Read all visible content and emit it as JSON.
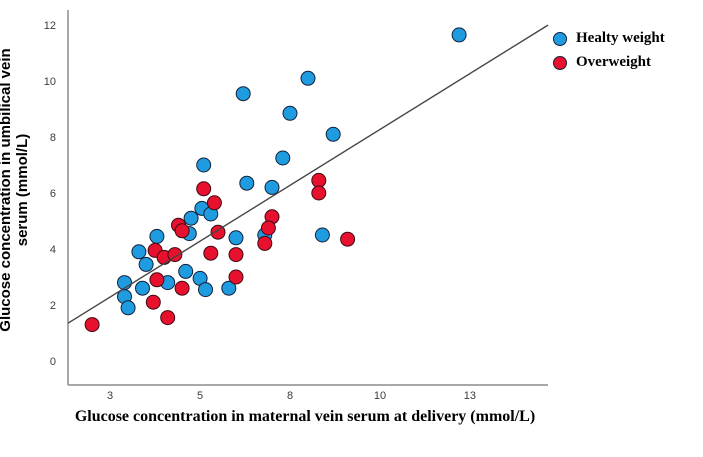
{
  "chart_data": {
    "type": "scatter",
    "title": "",
    "xlabel": "Glucose concentration in maternal vein serum at delivery (mmol/L)",
    "ylabel": "Glucose concentration in umbilical vein serum (mmol/L)",
    "xlim": [
      1.33,
      14.67
    ],
    "ylim": [
      -0.86,
      12.54
    ],
    "grid": false,
    "legend_position": "top-right",
    "x_ticks": [
      {
        "v": 2.5,
        "label": "3"
      },
      {
        "v": 5.0,
        "label": "5"
      },
      {
        "v": 7.5,
        "label": "8"
      },
      {
        "v": 10.0,
        "label": "10"
      },
      {
        "v": 12.5,
        "label": "13"
      }
    ],
    "y_ticks": [
      {
        "v": 0,
        "label": "0"
      },
      {
        "v": 2,
        "label": "2"
      },
      {
        "v": 4,
        "label": "4"
      },
      {
        "v": 6,
        "label": "6"
      },
      {
        "v": 8,
        "label": "8"
      },
      {
        "v": 10,
        "label": "10"
      },
      {
        "v": 12,
        "label": "12"
      }
    ],
    "series": [
      {
        "name": "Healty weight",
        "color": "#1f9be0",
        "outline": "#14203c",
        "marker": "circle",
        "points": [
          [
            12.2,
            11.65
          ],
          [
            8.0,
            10.1
          ],
          [
            6.2,
            9.55
          ],
          [
            7.5,
            8.85
          ],
          [
            8.7,
            8.1
          ],
          [
            7.3,
            7.25
          ],
          [
            5.1,
            7.0
          ],
          [
            6.3,
            6.35
          ],
          [
            7.0,
            6.2
          ],
          [
            5.05,
            5.45
          ],
          [
            5.3,
            5.25
          ],
          [
            4.75,
            5.1
          ],
          [
            3.8,
            4.45
          ],
          [
            4.7,
            4.55
          ],
          [
            6.0,
            4.4
          ],
          [
            6.8,
            4.5
          ],
          [
            8.4,
            4.5
          ],
          [
            3.3,
            3.9
          ],
          [
            3.5,
            3.45
          ],
          [
            4.6,
            3.2
          ],
          [
            5.0,
            2.95
          ],
          [
            5.15,
            2.55
          ],
          [
            5.8,
            2.6
          ],
          [
            2.9,
            2.8
          ],
          [
            3.4,
            2.6
          ],
          [
            4.1,
            2.8
          ],
          [
            2.9,
            2.3
          ],
          [
            3.0,
            1.9
          ]
        ]
      },
      {
        "name": "Overweight",
        "color": "#e8112d",
        "outline": "#3c0a14",
        "marker": "circle",
        "points": [
          [
            2.0,
            1.3
          ],
          [
            5.1,
            6.15
          ],
          [
            5.4,
            5.65
          ],
          [
            8.3,
            6.45
          ],
          [
            8.3,
            6.0
          ],
          [
            9.1,
            4.35
          ],
          [
            7.0,
            5.15
          ],
          [
            6.9,
            4.75
          ],
          [
            6.8,
            4.2
          ],
          [
            5.5,
            4.6
          ],
          [
            4.4,
            4.85
          ],
          [
            4.5,
            4.65
          ],
          [
            5.3,
            3.85
          ],
          [
            6.0,
            3.8
          ],
          [
            6.0,
            3.0
          ],
          [
            3.75,
            3.95
          ],
          [
            4.0,
            3.7
          ],
          [
            4.3,
            3.8
          ],
          [
            3.8,
            2.9
          ],
          [
            4.5,
            2.6
          ],
          [
            3.7,
            2.1
          ],
          [
            4.1,
            1.55
          ]
        ]
      }
    ],
    "trendline": {
      "x1": 1.33,
      "y1": 1.35,
      "x2": 14.67,
      "y2": 12.0,
      "color": "#454545"
    }
  },
  "legend": {
    "items": [
      {
        "label": "Healty weight",
        "color": "#1f9be0"
      },
      {
        "label": "Overweight",
        "color": "#e8112d"
      }
    ]
  },
  "style": {
    "axis_color": "#8c8c8c",
    "tick_label_color": "#3d3d3d",
    "background": "#ffffff",
    "point_radius": 7
  }
}
